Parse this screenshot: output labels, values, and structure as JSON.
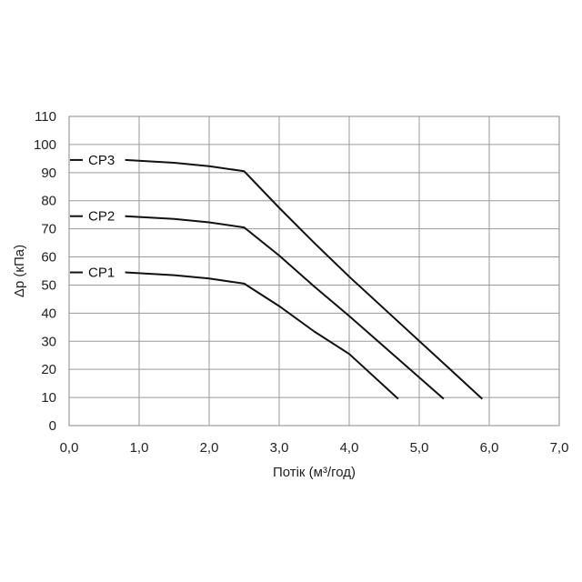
{
  "chart_data": {
    "type": "line",
    "xlabel": "Потік (м³/год)",
    "ylabel": "Δp (кПа)",
    "xlim": [
      0,
      7
    ],
    "ylim": [
      0,
      110
    ],
    "xticks": [
      "0,0",
      "1,0",
      "2,0",
      "3,0",
      "4,0",
      "5,0",
      "6,0",
      "7,0"
    ],
    "yticks": [
      "0",
      "10",
      "20",
      "30",
      "40",
      "50",
      "60",
      "70",
      "80",
      "90",
      "100",
      "110"
    ],
    "grid": true,
    "series": [
      {
        "name": "CP1",
        "points": [
          [
            0.8,
            54.5
          ],
          [
            1.5,
            53.5
          ],
          [
            2.0,
            52.3
          ],
          [
            2.5,
            50.5
          ],
          [
            3.0,
            42.5
          ],
          [
            3.5,
            33.5
          ],
          [
            4.0,
            25.5
          ],
          [
            4.7,
            9.5
          ]
        ]
      },
      {
        "name": "CP2",
        "points": [
          [
            0.8,
            74.5
          ],
          [
            1.5,
            73.5
          ],
          [
            2.0,
            72.3
          ],
          [
            2.5,
            70.5
          ],
          [
            3.0,
            60.5
          ],
          [
            3.5,
            49.5
          ],
          [
            4.0,
            39.0
          ],
          [
            5.35,
            9.5
          ]
        ]
      },
      {
        "name": "CP3",
        "points": [
          [
            0.8,
            94.5
          ],
          [
            1.5,
            93.5
          ],
          [
            2.0,
            92.3
          ],
          [
            2.5,
            90.5
          ],
          [
            3.0,
            77.5
          ],
          [
            3.5,
            65.0
          ],
          [
            4.0,
            53.0
          ],
          [
            5.9,
            9.5
          ]
        ]
      }
    ]
  }
}
